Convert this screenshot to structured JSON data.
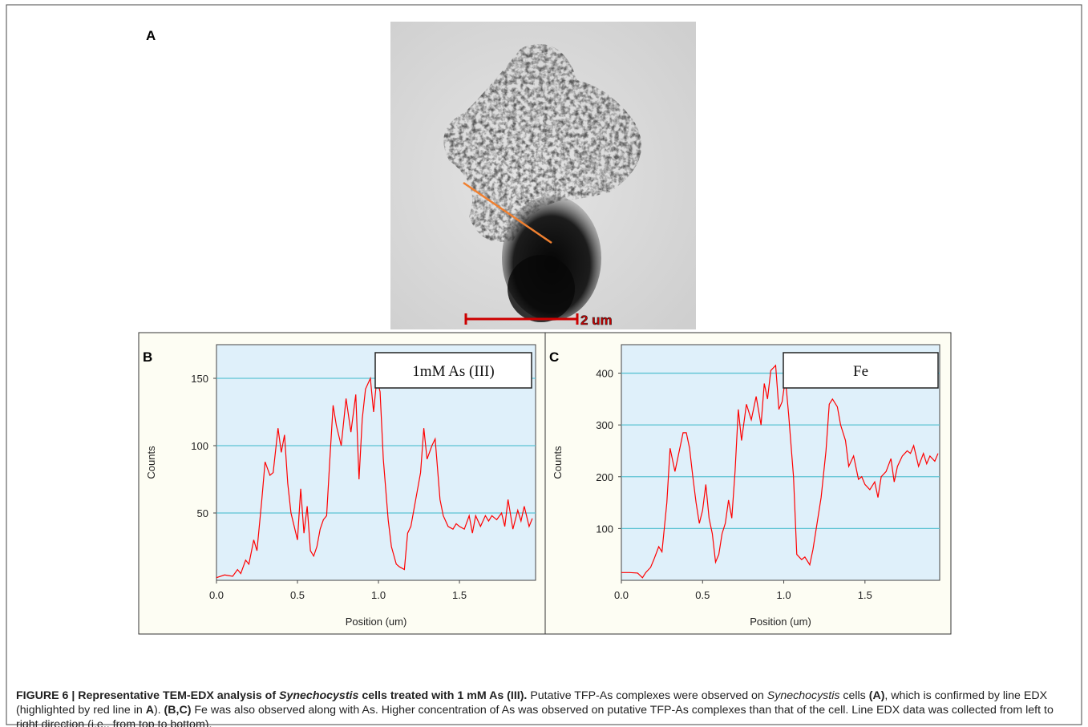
{
  "panel_a": {
    "panel_label": "A",
    "scale_bar_label": "2 um"
  },
  "chart_data": [
    {
      "type": "line",
      "panel_label": "B",
      "x": [
        0,
        0.05,
        0.1,
        0.13,
        0.15,
        0.18,
        0.2,
        0.23,
        0.25,
        0.28,
        0.3,
        0.33,
        0.35,
        0.38,
        0.4,
        0.42,
        0.44,
        0.46,
        0.48,
        0.5,
        0.52,
        0.54,
        0.56,
        0.58,
        0.6,
        0.62,
        0.64,
        0.66,
        0.68,
        0.7,
        0.72,
        0.74,
        0.77,
        0.8,
        0.83,
        0.86,
        0.88,
        0.9,
        0.92,
        0.95,
        0.97,
        0.99,
        1.01,
        1.03,
        1.06,
        1.08,
        1.11,
        1.13,
        1.16,
        1.18,
        1.2,
        1.23,
        1.26,
        1.28,
        1.3,
        1.33,
        1.35,
        1.38,
        1.4,
        1.43,
        1.46,
        1.48,
        1.5,
        1.53,
        1.56,
        1.58,
        1.6,
        1.63,
        1.66,
        1.68,
        1.7,
        1.73,
        1.76,
        1.78,
        1.8,
        1.83,
        1.86,
        1.88,
        1.9,
        1.93,
        1.95
      ],
      "series": [
        {
          "name": "1mM As (III)",
          "color": "#ff0000",
          "values": [
            2,
            4,
            3,
            8,
            5,
            15,
            12,
            30,
            22,
            60,
            88,
            78,
            80,
            113,
            95,
            108,
            72,
            50,
            40,
            30,
            68,
            35,
            55,
            22,
            18,
            25,
            38,
            45,
            48,
            90,
            130,
            115,
            100,
            135,
            110,
            138,
            75,
            120,
            142,
            150,
            125,
            150,
            140,
            90,
            45,
            25,
            12,
            10,
            8,
            35,
            40,
            60,
            80,
            113,
            90,
            100,
            105,
            60,
            48,
            40,
            38,
            42,
            40,
            38,
            48,
            35,
            48,
            40,
            48,
            44,
            48,
            45,
            50,
            40,
            60,
            38,
            52,
            44,
            55,
            40,
            46
          ]
        }
      ],
      "xlabel": "Position (um)",
      "ylabel": "Counts",
      "xlim": [
        0,
        1.97
      ],
      "ylim": [
        0,
        175
      ],
      "xticks": [
        {
          "value": 0,
          "label": "0.0"
        },
        {
          "value": 0.5,
          "label": "0.5"
        },
        {
          "value": 1,
          "label": "1.0"
        },
        {
          "value": 1.5,
          "label": "1.5"
        }
      ],
      "yticks": [
        50,
        100,
        150
      ],
      "grid": true,
      "grid_color": "#5cc3d3",
      "plot_background": "#dff0fa"
    },
    {
      "type": "line",
      "panel_label": "C",
      "x": [
        0,
        0.05,
        0.1,
        0.13,
        0.15,
        0.18,
        0.2,
        0.23,
        0.25,
        0.28,
        0.3,
        0.33,
        0.35,
        0.38,
        0.4,
        0.42,
        0.44,
        0.46,
        0.48,
        0.5,
        0.52,
        0.54,
        0.56,
        0.58,
        0.6,
        0.62,
        0.64,
        0.66,
        0.68,
        0.7,
        0.72,
        0.74,
        0.77,
        0.8,
        0.83,
        0.86,
        0.88,
        0.9,
        0.92,
        0.95,
        0.97,
        0.99,
        1.01,
        1.03,
        1.06,
        1.08,
        1.11,
        1.13,
        1.16,
        1.18,
        1.2,
        1.23,
        1.26,
        1.28,
        1.3,
        1.33,
        1.35,
        1.38,
        1.4,
        1.43,
        1.46,
        1.48,
        1.5,
        1.53,
        1.56,
        1.58,
        1.6,
        1.63,
        1.66,
        1.68,
        1.7,
        1.73,
        1.76,
        1.78,
        1.8,
        1.83,
        1.86,
        1.88,
        1.9,
        1.93,
        1.95
      ],
      "series": [
        {
          "name": "Fe",
          "color": "#ff0000",
          "values": [
            15,
            15,
            14,
            5,
            15,
            25,
            40,
            65,
            55,
            150,
            255,
            210,
            240,
            285,
            285,
            255,
            200,
            150,
            110,
            135,
            185,
            120,
            90,
            35,
            50,
            90,
            110,
            155,
            120,
            210,
            330,
            270,
            340,
            310,
            355,
            300,
            380,
            350,
            405,
            415,
            330,
            345,
            390,
            320,
            200,
            50,
            40,
            45,
            30,
            60,
            100,
            160,
            250,
            340,
            350,
            335,
            300,
            270,
            220,
            240,
            195,
            200,
            185,
            175,
            190,
            160,
            200,
            210,
            235,
            190,
            220,
            240,
            250,
            245,
            260,
            220,
            245,
            225,
            240,
            230,
            245
          ]
        }
      ],
      "xlabel": "Position (um)",
      "ylabel": "Counts",
      "xlim": [
        0,
        1.96
      ],
      "ylim": [
        0,
        455
      ],
      "xticks": [
        {
          "value": 0,
          "label": "0.0"
        },
        {
          "value": 0.5,
          "label": "0.5"
        },
        {
          "value": 1,
          "label": "1.0"
        },
        {
          "value": 1.5,
          "label": "1.5"
        }
      ],
      "yticks": [
        100,
        200,
        300,
        400
      ],
      "grid": true,
      "grid_color": "#5cc3d3",
      "plot_background": "#dff0fa"
    }
  ],
  "caption": {
    "runs": [
      {
        "text": "FIGURE 6 | Representative TEM-EDX analysis of ",
        "bold": true
      },
      {
        "text": "Synechocystis",
        "bold": true,
        "italic": true
      },
      {
        "text": " cells treated with 1 mM As (III).",
        "bold": true
      },
      {
        "text": " Putative TFP-As complexes were observed on "
      },
      {
        "text": "Synechocystis",
        "italic": true
      },
      {
        "text": " cells "
      },
      {
        "text": "(A)",
        "bold": true
      },
      {
        "text": ", which is confirmed by line EDX (highlighted by red line in "
      },
      {
        "text": "A",
        "bold": true
      },
      {
        "text": "). "
      },
      {
        "text": "(B,C)",
        "bold": true
      },
      {
        "text": " Fe was also observed along with As. Higher concentration of As was observed on putative TFP-As complexes than that of the cell. Line EDX data was collected from left to right direction (i.e., from top to bottom)."
      }
    ]
  }
}
